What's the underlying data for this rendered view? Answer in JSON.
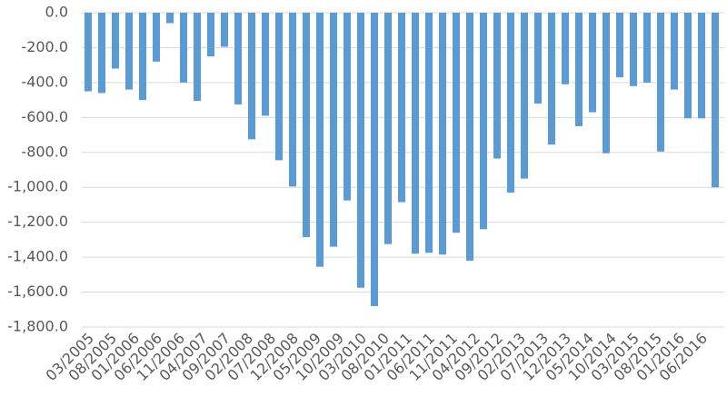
{
  "chart_data": {
    "type": "bar",
    "x": [
      "03/2005",
      "06/2005",
      "09/2005",
      "12/2005",
      "03/2006",
      "06/2006",
      "09/2006",
      "12/2006",
      "03/2007",
      "06/2007",
      "09/2007",
      "12/2007",
      "03/2008",
      "06/2008",
      "09/2008",
      "12/2008",
      "03/2009",
      "06/2009",
      "09/2009",
      "12/2009",
      "03/2010",
      "06/2010",
      "09/2010",
      "12/2010",
      "03/2011",
      "06/2011",
      "09/2011",
      "12/2011",
      "03/2012",
      "06/2012",
      "09/2012",
      "12/2012",
      "03/2013",
      "06/2013",
      "09/2013",
      "12/2013",
      "03/2014",
      "06/2014",
      "09/2014",
      "12/2014",
      "03/2015",
      "06/2015",
      "09/2015",
      "12/2015",
      "03/2016",
      "06/2016",
      "09/2016"
    ],
    "values": [
      -450,
      -460,
      -320,
      -440,
      -500,
      -280,
      -60,
      -400,
      -505,
      -250,
      -195,
      -525,
      -725,
      -590,
      -845,
      -995,
      -1285,
      -1455,
      -1340,
      -1075,
      -1575,
      -1680,
      -1325,
      -1085,
      -1380,
      -1375,
      -1385,
      -1260,
      -1420,
      -1240,
      -835,
      -1030,
      -950,
      -520,
      -755,
      -410,
      -650,
      -570,
      -805,
      -370,
      -420,
      -400,
      -795,
      -440,
      -605,
      -605,
      -1000
    ],
    "color": "#5b9bd5",
    "xticks": [
      "03/2005",
      "08/2005",
      "01/2006",
      "06/2006",
      "11/2006",
      "04/2007",
      "09/2007",
      "02/2008",
      "07/2008",
      "12/2008",
      "05/2009",
      "10/2009",
      "03/2010",
      "08/2010",
      "01/2011",
      "06/2011",
      "11/2011",
      "04/2012",
      "09/2012",
      "02/2013",
      "07/2013",
      "12/2013",
      "05/2014",
      "10/2014",
      "03/2015",
      "08/2015",
      "01/2016",
      "06/2016"
    ],
    "ylim": [
      -1800,
      0
    ],
    "yticks": [
      {
        "value": 0,
        "label": "0.0"
      },
      {
        "value": -200,
        "label": "-200.0"
      },
      {
        "value": -400,
        "label": "-400.0"
      },
      {
        "value": -600,
        "label": "-600.0"
      },
      {
        "value": -800,
        "label": "-800.0"
      },
      {
        "value": -1000,
        "label": "-1,000.0"
      },
      {
        "value": -1200,
        "label": "-1,200.0"
      },
      {
        "value": -1400,
        "label": "-1,400.0"
      },
      {
        "value": -1600,
        "label": "-1,600.0"
      },
      {
        "value": -1800,
        "label": "-1,800.0"
      }
    ],
    "grid": true
  }
}
